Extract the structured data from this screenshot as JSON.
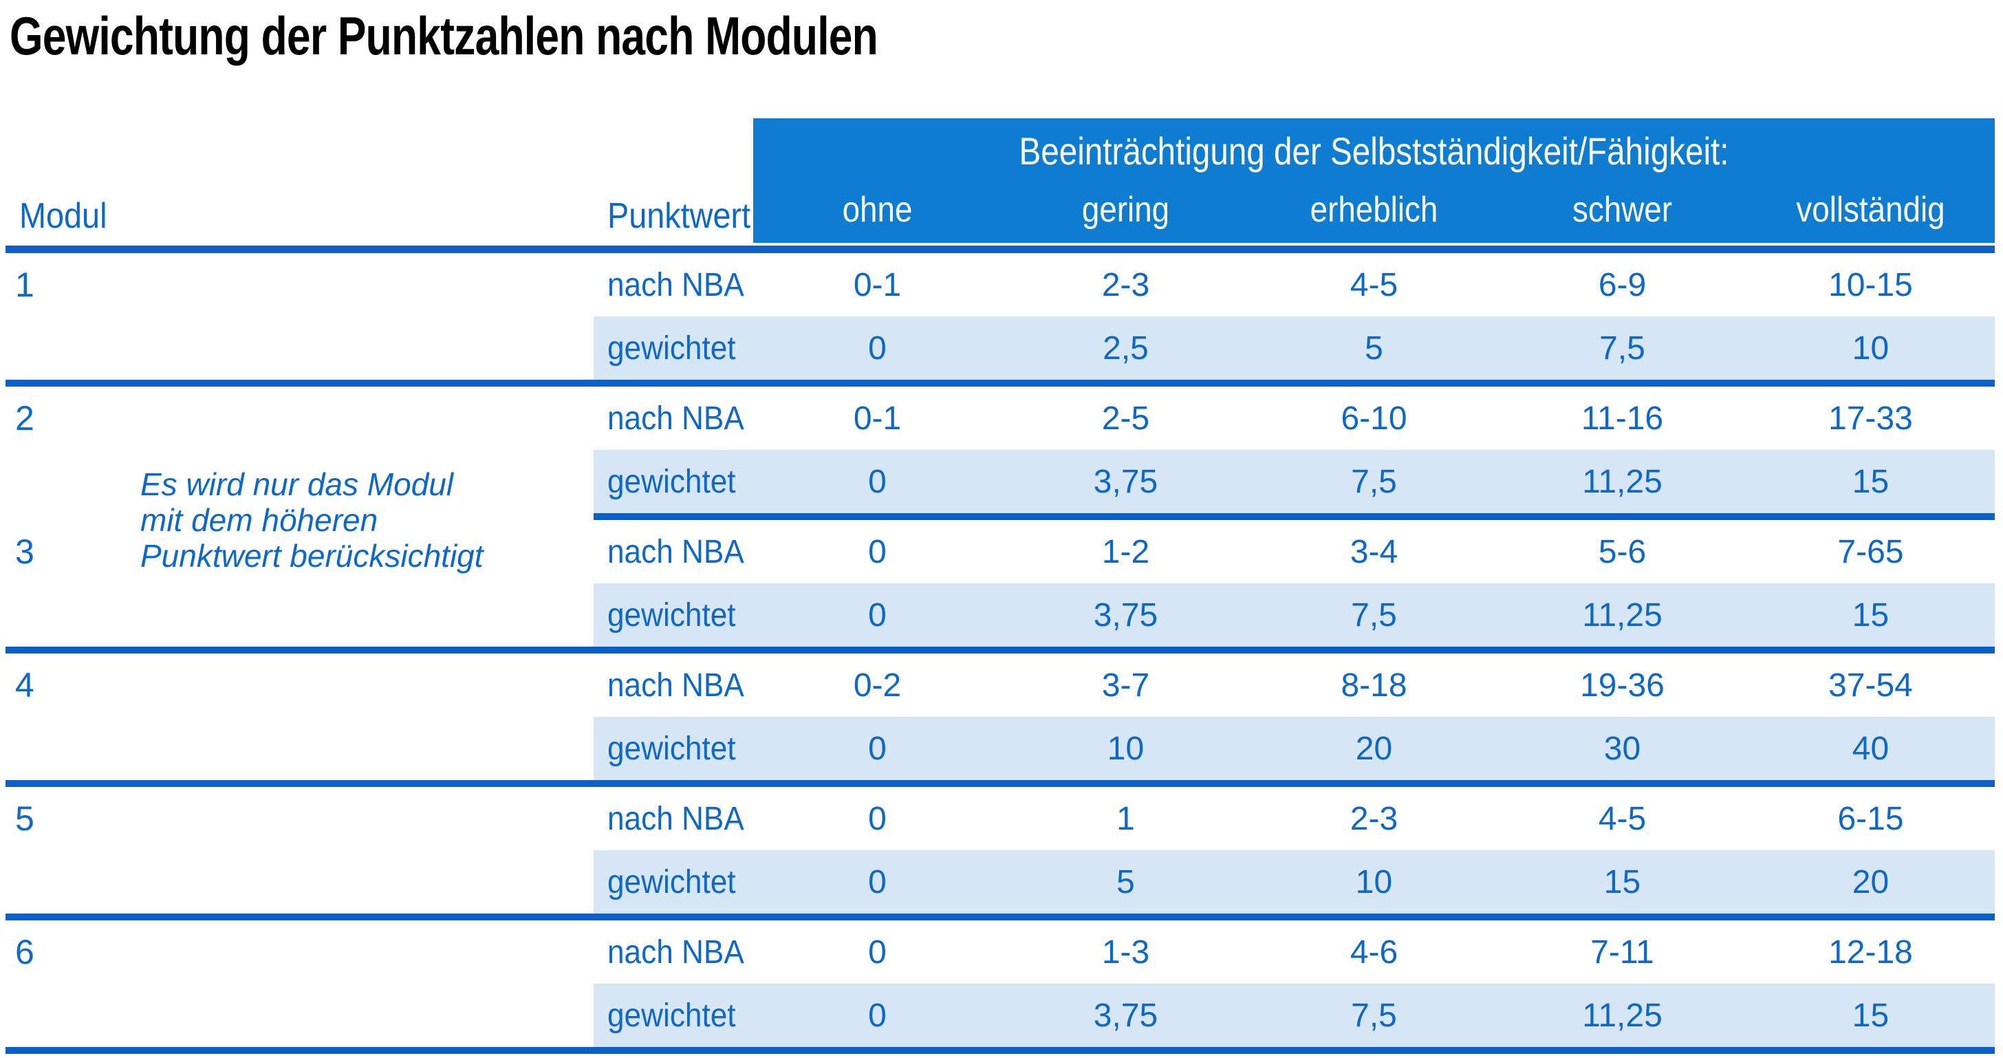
{
  "title": "Gewichtung der Punktzahlen nach Modulen",
  "colors": {
    "header_band": "#0d7cd1",
    "separator_line": "#0a5fc8",
    "weighted_row_bg": "#d6e6f4",
    "text_blue": "#0d68c8",
    "band_text": "#ffffff",
    "title_text": "#000000"
  },
  "table": {
    "header": {
      "modul_label": "Modul",
      "punktwert_label": "Punktwert",
      "impairment_heading": "Beeinträchtigung der Selbstständigkeit/Fähigkeit:",
      "severity_labels": [
        "ohne",
        "gering",
        "erheblich",
        "schwer",
        "vollständig"
      ]
    },
    "row_labels": {
      "nba": "nach NBA",
      "weighted": "gewichtet"
    },
    "note": {
      "lines": [
        "Es wird nur das Modul",
        "mit dem höheren",
        "Punktwert berücksichtigt"
      ]
    },
    "modules": [
      {
        "number": "1",
        "nba": [
          "0-1",
          "2-3",
          "4-5",
          "6-9",
          "10-15"
        ],
        "weighted": [
          "0",
          "2,5",
          "5",
          "7,5",
          "10"
        ],
        "separator": "full"
      },
      {
        "number": "2",
        "nba": [
          "0-1",
          "2-5",
          "6-10",
          "11-16",
          "17-33"
        ],
        "weighted": [
          "0",
          "3,75",
          "7,5",
          "11,25",
          "15"
        ],
        "separator": "partial"
      },
      {
        "number": "3",
        "nba": [
          "0",
          "1-2",
          "3-4",
          "5-6",
          "7-65"
        ],
        "weighted": [
          "0",
          "3,75",
          "7,5",
          "11,25",
          "15"
        ],
        "separator": "full"
      },
      {
        "number": "4",
        "nba": [
          "0-2",
          "3-7",
          "8-18",
          "19-36",
          "37-54"
        ],
        "weighted": [
          "0",
          "10",
          "20",
          "30",
          "40"
        ],
        "separator": "full"
      },
      {
        "number": "5",
        "nba": [
          "0",
          "1",
          "2-3",
          "4-5",
          "6-15"
        ],
        "weighted": [
          "0",
          "5",
          "10",
          "15",
          "20"
        ],
        "separator": "full"
      },
      {
        "number": "6",
        "nba": [
          "0",
          "1-3",
          "4-6",
          "7-11",
          "12-18"
        ],
        "weighted": [
          "0",
          "3,75",
          "7,5",
          "11,25",
          "15"
        ],
        "separator": "full"
      }
    ]
  }
}
